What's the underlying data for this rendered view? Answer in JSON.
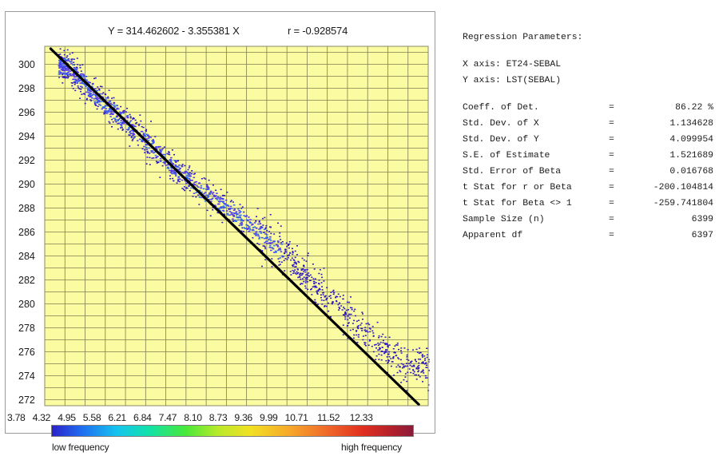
{
  "scatter": {
    "equation": "Y = 314.462602 - 3.355381 X",
    "r_text": "r = -0.928574",
    "y_ticks": [
      272,
      274,
      276,
      278,
      280,
      282,
      284,
      286,
      288,
      290,
      292,
      294,
      296,
      298,
      300
    ],
    "x_tick_labels": [
      "3.78",
      "4.32",
      "4.95",
      "5.58",
      "6.21",
      "6.84",
      "7.47",
      "8.10",
      "8.73",
      "9.36",
      "9.99",
      "10.71",
      "11.52",
      "12.33"
    ],
    "legend_low": "low frequency",
    "legend_high": "high frequency",
    "colors": {
      "plot_bg": "#fbfba2",
      "grid": "#7e7e50",
      "line": "#000000",
      "points_low": "#2a14c8",
      "points_mid": "#5038f0",
      "points_high": "#2a6cf0"
    }
  },
  "params": {
    "title": "Regression Parameters:",
    "x_axis": "X axis: ET24-SEBAL",
    "y_axis": "Y axis: LST(SEBAL)",
    "rows": [
      {
        "label": "Coeff. of Det.",
        "value": "86.22 %"
      },
      {
        "label": "Std. Dev. of X",
        "value": "1.134628"
      },
      {
        "label": "Std. Dev. of Y",
        "value": "4.099954"
      },
      {
        "label": "S.E. of Estimate",
        "value": "1.521689"
      },
      {
        "label": "Std. Error of Beta",
        "value": "0.016768"
      },
      {
        "label": "t Stat for r or Beta",
        "value": "-200.104814"
      },
      {
        "label": "t Stat for Beta <> 1",
        "value": "-259.741804"
      },
      {
        "label": "Sample Size (n)",
        "value": "6399"
      },
      {
        "label": "Apparent df",
        "value": "6397"
      }
    ]
  },
  "chart_data": {
    "type": "scatter",
    "x_tick_labels": [
      "3.78",
      "4.32",
      "4.95",
      "5.58",
      "6.21",
      "6.84",
      "7.47",
      "8.10",
      "8.73",
      "9.36",
      "9.99",
      "10.71",
      "11.52",
      "12.33"
    ],
    "y_ticks": [
      272,
      274,
      276,
      278,
      280,
      282,
      284,
      286,
      288,
      290,
      292,
      294,
      296,
      298,
      300
    ],
    "xlim": [
      3.78,
      13.0
    ],
    "ylim": [
      271.5,
      301.5
    ],
    "regression": {
      "intercept": 314.462602,
      "slope": -3.355381,
      "r": -0.928574
    },
    "density_ridge": [
      {
        "x": 4.3,
        "y": 299.9
      },
      {
        "x": 5.0,
        "y": 297.4
      },
      {
        "x": 5.6,
        "y": 295.6
      },
      {
        "x": 6.2,
        "y": 293.6
      },
      {
        "x": 6.8,
        "y": 291.6
      },
      {
        "x": 7.5,
        "y": 289.5
      },
      {
        "x": 8.1,
        "y": 288.2
      },
      {
        "x": 8.7,
        "y": 286.6
      },
      {
        "x": 9.4,
        "y": 284.6
      },
      {
        "x": 10.0,
        "y": 282.5
      },
      {
        "x": 10.7,
        "y": 280.2
      },
      {
        "x": 11.5,
        "y": 277.6
      },
      {
        "x": 12.3,
        "y": 275.0
      }
    ],
    "n": 6399,
    "grid": true,
    "legend": "bottom colorbar"
  }
}
